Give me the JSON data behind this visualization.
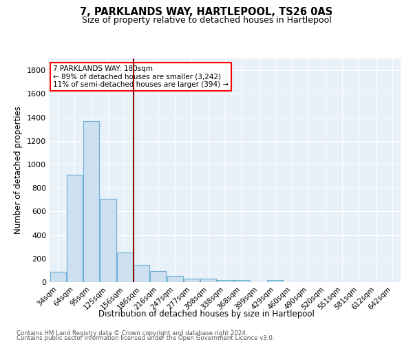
{
  "title": "7, PARKLANDS WAY, HARTLEPOOL, TS26 0AS",
  "subtitle": "Size of property relative to detached houses in Hartlepool",
  "xlabel": "Distribution of detached houses by size in Hartlepool",
  "ylabel": "Number of detached properties",
  "bar_labels": [
    "34sqm",
    "64sqm",
    "95sqm",
    "125sqm",
    "156sqm",
    "186sqm",
    "216sqm",
    "247sqm",
    "277sqm",
    "308sqm",
    "338sqm",
    "368sqm",
    "399sqm",
    "429sqm",
    "460sqm",
    "490sqm",
    "520sqm",
    "551sqm",
    "581sqm",
    "612sqm",
    "642sqm"
  ],
  "bar_values": [
    90,
    910,
    1370,
    710,
    250,
    145,
    95,
    55,
    28,
    30,
    18,
    15,
    0,
    20,
    0,
    0,
    0,
    0,
    0,
    0,
    0
  ],
  "bar_color": "#cce0f0",
  "bar_edgecolor": "#6baed6",
  "annotation_text": "7 PARKLANDS WAY: 180sqm\n← 89% of detached houses are smaller (3,242)\n11% of semi-detached houses are larger (394) →",
  "annotation_box_color": "white",
  "annotation_box_edgecolor": "red",
  "vline_color": "#8b0000",
  "ylim": [
    0,
    1900
  ],
  "yticks": [
    0,
    200,
    400,
    600,
    800,
    1000,
    1200,
    1400,
    1600,
    1800
  ],
  "background_color": "#e8f0f8",
  "grid_color": "white",
  "footer1": "Contains HM Land Registry data © Crown copyright and database right 2024.",
  "footer2": "Contains public sector information licensed under the Open Government Licence v3.0."
}
